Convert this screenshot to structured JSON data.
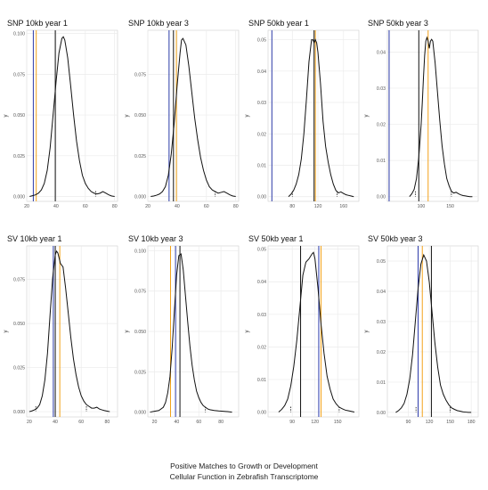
{
  "caption": {
    "line1": "Positive Matches to Growth or Development",
    "line2": "Cellular Function  in Zebrafish Transcriptome"
  },
  "colors": {
    "density": "#111111",
    "blue": "#2b3aa8",
    "orange": "#f2a21a",
    "black_line": "#111111",
    "grid": "#ebebeb"
  },
  "chart_data": [
    {
      "type": "line",
      "title": "SNP 10kb year 1",
      "ylabel": "y",
      "xlim": [
        20,
        82
      ],
      "ylim": [
        -0.003,
        0.102
      ],
      "xticks": [
        20,
        40,
        60,
        80
      ],
      "yticks": [
        0.0,
        0.025,
        0.05,
        0.075,
        0.1
      ],
      "yticklabels": [
        "0.000",
        "0.025",
        "0.050",
        "0.075",
        "0.100"
      ],
      "density": {
        "x": [
          22,
          24,
          26,
          28,
          30,
          32,
          34,
          36,
          38,
          40,
          42,
          44,
          45,
          46,
          48,
          50,
          52,
          54,
          56,
          58,
          60,
          62,
          64,
          66,
          68,
          70,
          72,
          74,
          76,
          78,
          80
        ],
        "y": [
          0.0,
          0.0005,
          0.001,
          0.002,
          0.004,
          0.008,
          0.016,
          0.03,
          0.05,
          0.07,
          0.088,
          0.097,
          0.098,
          0.096,
          0.085,
          0.068,
          0.05,
          0.034,
          0.022,
          0.013,
          0.008,
          0.005,
          0.003,
          0.002,
          0.0015,
          0.002,
          0.003,
          0.002,
          0.001,
          0.0003,
          0.0
        ]
      },
      "vlines": {
        "blue": 24.5,
        "orange": 26.5,
        "black": 39.5
      },
      "dashes": [
        67
      ]
    },
    {
      "type": "line",
      "title": "SNP 10kb year 3",
      "ylabel": "y",
      "xlim": [
        20,
        82
      ],
      "ylim": [
        -0.003,
        0.102
      ],
      "xticks": [
        20,
        40,
        60,
        80
      ],
      "yticks": [
        0.0,
        0.025,
        0.05,
        0.075
      ],
      "yticklabels": [
        "0.000",
        "0.025",
        "0.050",
        "0.075"
      ],
      "density": {
        "x": [
          22,
          24,
          26,
          28,
          30,
          32,
          34,
          36,
          38,
          40,
          42,
          43,
          44,
          46,
          48,
          50,
          52,
          54,
          56,
          58,
          60,
          62,
          64,
          66,
          68,
          70,
          72,
          74,
          76,
          78,
          80
        ],
        "y": [
          0.0,
          0.0003,
          0.0008,
          0.0015,
          0.003,
          0.006,
          0.013,
          0.026,
          0.045,
          0.068,
          0.088,
          0.096,
          0.097,
          0.093,
          0.08,
          0.064,
          0.048,
          0.035,
          0.024,
          0.016,
          0.01,
          0.006,
          0.004,
          0.003,
          0.002,
          0.0025,
          0.003,
          0.002,
          0.001,
          0.0003,
          0.0
        ]
      },
      "vlines": {
        "blue": 34.5,
        "orange": 39.5,
        "black": 37.5
      },
      "dashes": [
        66
      ]
    },
    {
      "type": "line",
      "title": "SNP 50kb year 1",
      "ylabel": "y",
      "xlim": [
        42,
        184
      ],
      "ylim": [
        -0.0015,
        0.053
      ],
      "xticks": [
        80,
        120,
        160
      ],
      "yticks": [
        0.0,
        0.01,
        0.02,
        0.03,
        0.04,
        0.05
      ],
      "yticklabels": [
        "0.00",
        "0.01",
        "0.02",
        "0.03",
        "0.04",
        "0.05"
      ],
      "density": {
        "x": [
          74,
          78,
          82,
          86,
          90,
          94,
          98,
          102,
          106,
          110,
          112,
          114,
          116,
          118,
          120,
          124,
          128,
          132,
          136,
          140,
          144,
          148,
          152,
          156,
          160,
          164,
          168,
          172,
          176
        ],
        "y": [
          0.0,
          0.0008,
          0.002,
          0.004,
          0.007,
          0.012,
          0.02,
          0.031,
          0.043,
          0.05,
          0.05,
          0.049,
          0.05,
          0.049,
          0.046,
          0.036,
          0.024,
          0.016,
          0.011,
          0.007,
          0.004,
          0.002,
          0.0012,
          0.0015,
          0.001,
          0.0006,
          0.0004,
          0.0002,
          0.0
        ]
      },
      "vlines": {
        "blue": 48,
        "orange": 116,
        "black": 114
      },
      "dashes": [
        80,
        150
      ]
    },
    {
      "type": "line",
      "title": "SNP 50kb year 3",
      "ylabel": "y",
      "xlim": [
        42,
        198
      ],
      "ylim": [
        -0.0013,
        0.046
      ],
      "xticks": [
        100,
        150
      ],
      "yticks": [
        0.0,
        0.01,
        0.02,
        0.03,
        0.04
      ],
      "yticklabels": [
        "0.00",
        "0.01",
        "0.02",
        "0.03",
        "0.04"
      ],
      "density": {
        "x": [
          80,
          84,
          88,
          92,
          96,
          100,
          102,
          104,
          106,
          108,
          110,
          112,
          114,
          116,
          118,
          120,
          124,
          128,
          132,
          136,
          140,
          144,
          148,
          152,
          156,
          160,
          164,
          168,
          172,
          176,
          180,
          184,
          188
        ],
        "y": [
          0.0,
          0.0008,
          0.002,
          0.005,
          0.011,
          0.02,
          0.026,
          0.033,
          0.039,
          0.043,
          0.044,
          0.043,
          0.041,
          0.043,
          0.0435,
          0.043,
          0.037,
          0.029,
          0.021,
          0.014,
          0.009,
          0.005,
          0.003,
          0.0015,
          0.001,
          0.0012,
          0.0008,
          0.0005,
          0.0003,
          0.0002,
          0.0001,
          0.0,
          0.0
        ]
      },
      "vlines": {
        "blue": 45,
        "orange": 112,
        "black": 96
      },
      "dashes": [
        90,
        152
      ]
    },
    {
      "type": "line",
      "title": "SV 10kb year 1",
      "ylabel": "y",
      "xlim": [
        18,
        88
      ],
      "ylim": [
        -0.003,
        0.094
      ],
      "xticks": [
        20,
        40,
        60,
        80
      ],
      "yticks": [
        0.0,
        0.025,
        0.05,
        0.075
      ],
      "yticklabels": [
        "0.000",
        "0.025",
        "0.050",
        "0.075"
      ],
      "density": {
        "x": [
          20,
          22,
          24,
          26,
          28,
          30,
          32,
          34,
          36,
          38,
          40,
          41,
          42,
          44,
          46,
          48,
          50,
          52,
          54,
          56,
          58,
          60,
          62,
          64,
          66,
          68,
          70,
          72,
          74,
          76,
          78,
          80,
          82
        ],
        "y": [
          0.0,
          0.0004,
          0.001,
          0.002,
          0.004,
          0.009,
          0.018,
          0.033,
          0.055,
          0.076,
          0.089,
          0.091,
          0.09,
          0.084,
          0.082,
          0.07,
          0.056,
          0.042,
          0.03,
          0.021,
          0.014,
          0.009,
          0.006,
          0.004,
          0.003,
          0.002,
          0.002,
          0.0025,
          0.0015,
          0.001,
          0.0006,
          0.0003,
          0.0
        ]
      },
      "vlines": {
        "blue": 38.5,
        "orange": 43.5,
        "black": 40
      },
      "dashes": [
        25,
        64
      ]
    },
    {
      "type": "line",
      "title": "SV 10kb year 3",
      "ylabel": "y",
      "xlim": [
        14,
        96
      ],
      "ylim": [
        -0.003,
        0.103
      ],
      "xticks": [
        20,
        40,
        60,
        80
      ],
      "yticks": [
        0.0,
        0.025,
        0.05,
        0.075,
        0.1
      ],
      "yticklabels": [
        "0.000",
        "0.025",
        "0.050",
        "0.075",
        "0.100"
      ],
      "density": {
        "x": [
          16,
          20,
          24,
          28,
          30,
          32,
          34,
          36,
          38,
          40,
          42,
          44,
          46,
          48,
          50,
          52,
          54,
          56,
          58,
          60,
          62,
          64,
          66,
          68,
          70,
          74,
          78,
          82,
          86,
          90
        ],
        "y": [
          0.0,
          0.0005,
          0.001,
          0.003,
          0.006,
          0.012,
          0.022,
          0.04,
          0.063,
          0.085,
          0.097,
          0.098,
          0.088,
          0.072,
          0.056,
          0.041,
          0.029,
          0.02,
          0.013,
          0.009,
          0.006,
          0.004,
          0.003,
          0.002,
          0.0015,
          0.001,
          0.0007,
          0.0005,
          0.0003,
          0.0
        ]
      },
      "vlines": {
        "blue": 39,
        "orange": 34.5,
        "black": 43
      },
      "dashes": [
        66
      ]
    },
    {
      "type": "line",
      "title": "SV 50kb year 1",
      "ylabel": "y",
      "xlim": [
        58,
        178
      ],
      "ylim": [
        -0.0015,
        0.051
      ],
      "xticks": [
        90,
        120,
        150
      ],
      "yticks": [
        0.0,
        0.01,
        0.02,
        0.03,
        0.04,
        0.05
      ],
      "yticklabels": [
        "0.00",
        "0.01",
        "0.02",
        "0.03",
        "0.04",
        "0.05"
      ],
      "density": {
        "x": [
          72,
          76,
          80,
          84,
          88,
          92,
          96,
          100,
          104,
          108,
          112,
          116,
          118,
          120,
          124,
          128,
          132,
          136,
          140,
          144,
          148,
          152,
          156,
          160,
          164,
          168,
          172
        ],
        "y": [
          0.0,
          0.0008,
          0.002,
          0.004,
          0.008,
          0.014,
          0.022,
          0.032,
          0.042,
          0.046,
          0.047,
          0.0485,
          0.049,
          0.047,
          0.038,
          0.027,
          0.018,
          0.011,
          0.007,
          0.004,
          0.0025,
          0.0015,
          0.001,
          0.0006,
          0.0004,
          0.0002,
          0.0
        ]
      },
      "vlines": {
        "blue": 125,
        "orange": 128,
        "black": 101
      },
      "dashes": [
        88,
        152
      ]
    },
    {
      "type": "line",
      "title": "SV 50kb year 3",
      "ylabel": "y",
      "xlim": [
        60,
        190
      ],
      "ylim": [
        -0.0015,
        0.055
      ],
      "xticks": [
        90,
        120,
        150,
        180
      ],
      "yticks": [
        0.0,
        0.01,
        0.02,
        0.03,
        0.04,
        0.05
      ],
      "yticklabels": [
        "0.00",
        "0.01",
        "0.02",
        "0.03",
        "0.04",
        "0.05"
      ],
      "density": {
        "x": [
          72,
          76,
          80,
          84,
          88,
          92,
          96,
          100,
          104,
          108,
          112,
          116,
          120,
          124,
          128,
          132,
          136,
          140,
          144,
          148,
          152,
          156,
          160,
          164,
          168,
          172,
          176,
          180
        ],
        "y": [
          0.0,
          0.0006,
          0.0015,
          0.003,
          0.006,
          0.011,
          0.019,
          0.03,
          0.041,
          0.049,
          0.052,
          0.05,
          0.043,
          0.033,
          0.023,
          0.015,
          0.009,
          0.006,
          0.004,
          0.0025,
          0.0015,
          0.001,
          0.0006,
          0.0004,
          0.0002,
          0.0001,
          0.0,
          0.0
        ]
      },
      "vlines": {
        "blue": 104,
        "orange": 110,
        "black": 123
      },
      "dashes": [
        101,
        150
      ]
    }
  ]
}
